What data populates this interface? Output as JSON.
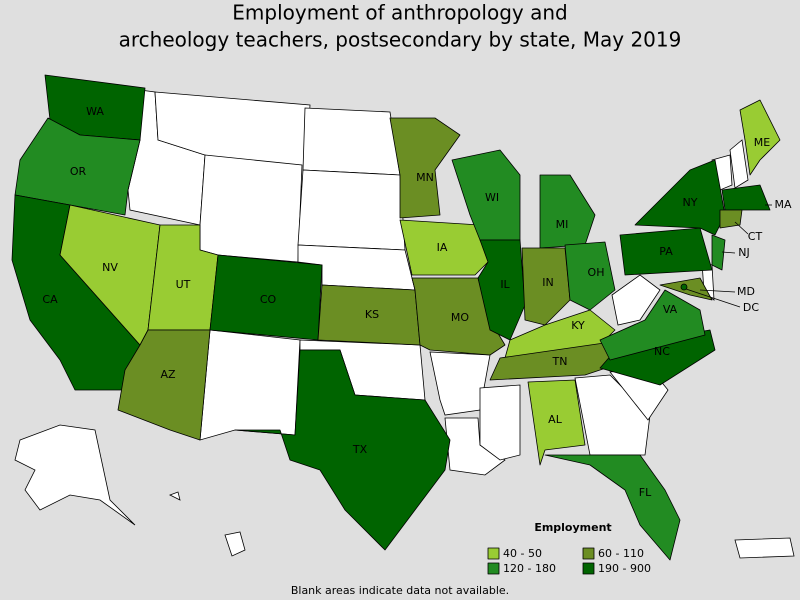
{
  "title_lines": [
    "Employment of anthropology and",
    "archeology teachers, postsecondary by state, May 2019"
  ],
  "legend": {
    "title": "Employment",
    "items": [
      {
        "label": "40 - 50",
        "color": "#99cc33"
      },
      {
        "label": "60 - 110",
        "color": "#6b8e23"
      },
      {
        "label": "120 - 180",
        "color": "#228b22"
      },
      {
        "label": "190 - 900",
        "color": "#006400"
      }
    ]
  },
  "states": [
    {
      "label": "WA",
      "range": "190 - 900"
    },
    {
      "label": "OR",
      "range": "120 - 180"
    },
    {
      "label": "CA",
      "range": "190 - 900"
    },
    {
      "label": "NV",
      "range": "40 - 50"
    },
    {
      "label": "UT",
      "range": "40 - 50"
    },
    {
      "label": "AZ",
      "range": "60 - 110"
    },
    {
      "label": "CO",
      "range": "190 - 900"
    },
    {
      "label": "TX",
      "range": "190 - 900"
    },
    {
      "label": "KS",
      "range": "60 - 110"
    },
    {
      "label": "MN",
      "range": "60 - 110"
    },
    {
      "label": "IA",
      "range": "40 - 50"
    },
    {
      "label": "MO",
      "range": "60 - 110"
    },
    {
      "label": "WI",
      "range": "120 - 180"
    },
    {
      "label": "IL",
      "range": "190 - 900"
    },
    {
      "label": "MI",
      "range": "120 - 180"
    },
    {
      "label": "IN",
      "range": "60 - 110"
    },
    {
      "label": "OH",
      "range": "120 - 180"
    },
    {
      "label": "KY",
      "range": "40 - 50"
    },
    {
      "label": "TN",
      "range": "60 - 110"
    },
    {
      "label": "AL",
      "range": "40 - 50"
    },
    {
      "label": "FL",
      "range": "120 - 180"
    },
    {
      "label": "NC",
      "range": "190 - 900"
    },
    {
      "label": "VA",
      "range": "120 - 180"
    },
    {
      "label": "PA",
      "range": "190 - 900"
    },
    {
      "label": "NY",
      "range": "190 - 900"
    },
    {
      "label": "ME",
      "range": "40 - 50"
    },
    {
      "label": "MA",
      "range": "190 - 900"
    },
    {
      "label": "CT",
      "range": "60 - 110"
    },
    {
      "label": "NJ",
      "range": "120 - 180"
    },
    {
      "label": "MD",
      "range": "60 - 110"
    },
    {
      "label": "DC",
      "range": "190 - 900"
    }
  ],
  "footnote": "Blank areas indicate data not available."
}
